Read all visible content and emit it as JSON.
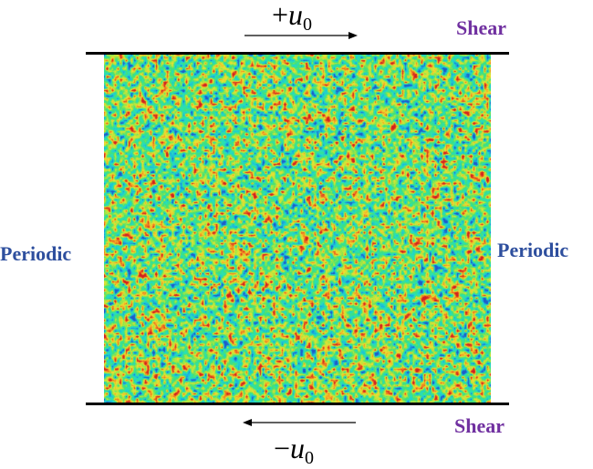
{
  "top": {
    "velocity_sign": "+",
    "velocity_symbol": "u",
    "velocity_subscript": "0",
    "boundary_label": "Shear"
  },
  "bottom": {
    "velocity_sign": "−",
    "velocity_symbol": "u",
    "velocity_subscript": "0",
    "boundary_label": "Shear"
  },
  "left": {
    "boundary_label": "Periodic"
  },
  "right": {
    "boundary_label": "Periodic"
  },
  "colors": {
    "shear_label": "#7030a0",
    "periodic_label": "#2e4f9e",
    "field_base": "#3ee07a",
    "field_palette": [
      "#1e5cc8",
      "#1ab4e0",
      "#26e0c0",
      "#3ee07a",
      "#a8e840",
      "#f0e030",
      "#f08020",
      "#d02020"
    ]
  }
}
